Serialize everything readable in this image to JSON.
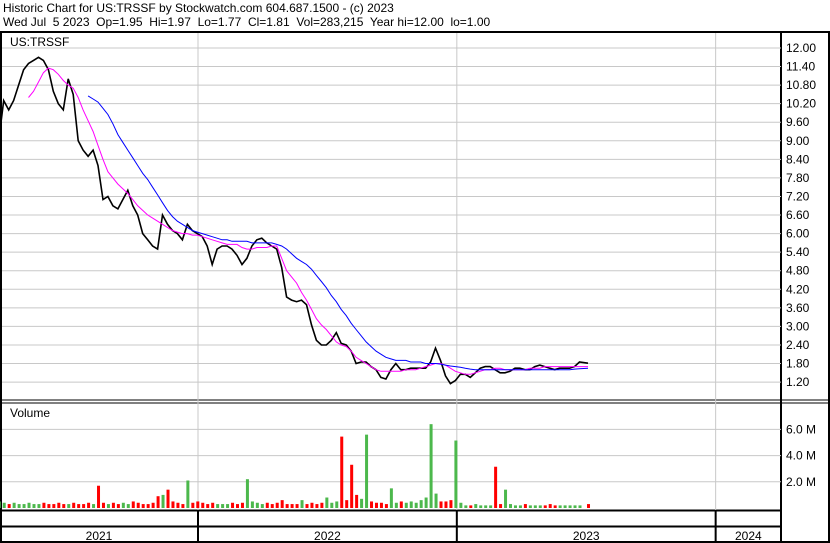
{
  "header": {
    "title": "Historic Chart for US:TRSSF by Stockwatch.com 604.687.1500 - (c) 2023",
    "quote": "Wed Jul  5 2023  Op=1.95  Hi=1.97  Lo=1.77  Cl=1.81  Vol=283,215  Year hi=12.00  lo=1.00"
  },
  "colors": {
    "price": "#000000",
    "ma_short": "#ff00ff",
    "ma_long": "#0000ff",
    "vol_up": "#4cb84c",
    "vol_down": "#ff0000",
    "grid": "#c8c8c8"
  },
  "chart_data": [
    {
      "type": "line",
      "title": "US:TRSSF",
      "ylim": [
        1.0,
        12.2
      ],
      "yticks": [
        "12.00",
        "11.40",
        "10.80",
        "10.20",
        "9.60",
        "9.00",
        "8.40",
        "7.80",
        "7.20",
        "6.60",
        "6.00",
        "5.40",
        "4.80",
        "4.20",
        "3.60",
        "3.00",
        "2.40",
        "1.80",
        "1.20"
      ],
      "xticks": [
        "2021",
        "2022",
        "2023",
        "2024"
      ],
      "grid": true,
      "x": [
        "2021-03-26",
        "2021-04-02",
        "2021-04-09",
        "2021-04-16",
        "2021-04-23",
        "2021-04-30",
        "2021-05-07",
        "2021-05-14",
        "2021-05-21",
        "2021-05-28",
        "2021-06-04",
        "2021-06-11",
        "2021-06-18",
        "2021-06-25",
        "2021-07-02",
        "2021-07-09",
        "2021-07-16",
        "2021-07-23",
        "2021-07-30",
        "2021-08-06",
        "2021-08-13",
        "2021-08-20",
        "2021-08-27",
        "2021-09-03",
        "2021-09-10",
        "2021-09-17",
        "2021-09-24",
        "2021-10-01",
        "2021-10-08",
        "2021-10-15",
        "2021-10-22",
        "2021-10-29",
        "2021-11-05",
        "2021-11-12",
        "2021-11-19",
        "2021-11-26",
        "2021-12-03",
        "2021-12-10",
        "2021-12-17",
        "2021-12-24",
        "2021-12-31",
        "2022-01-07",
        "2022-01-14",
        "2022-01-21",
        "2022-01-28",
        "2022-02-04",
        "2022-02-11",
        "2022-02-18",
        "2022-02-25",
        "2022-03-04",
        "2022-03-11",
        "2022-03-18",
        "2022-03-25",
        "2022-04-01",
        "2022-04-08",
        "2022-04-15",
        "2022-04-22",
        "2022-04-29",
        "2022-05-06",
        "2022-05-13",
        "2022-05-20",
        "2022-05-27",
        "2022-06-03",
        "2022-06-10",
        "2022-06-17",
        "2022-06-24",
        "2022-07-01",
        "2022-07-08",
        "2022-07-15",
        "2022-07-22",
        "2022-07-29",
        "2022-08-05",
        "2022-08-12",
        "2022-08-19",
        "2022-08-26",
        "2022-09-02",
        "2022-09-09",
        "2022-09-16",
        "2022-09-23",
        "2022-09-30",
        "2022-10-07",
        "2022-10-14",
        "2022-10-21",
        "2022-10-28",
        "2022-11-04",
        "2022-11-11",
        "2022-11-18",
        "2022-11-25",
        "2022-12-02",
        "2022-12-09",
        "2022-12-16",
        "2022-12-23",
        "2022-12-30",
        "2023-01-06",
        "2023-01-13",
        "2023-01-20",
        "2023-01-27",
        "2023-02-03",
        "2023-02-10",
        "2023-02-17",
        "2023-02-24",
        "2023-03-03",
        "2023-03-10",
        "2023-03-17",
        "2023-03-24",
        "2023-03-31",
        "2023-04-07",
        "2023-04-14",
        "2023-04-21",
        "2023-04-28",
        "2023-05-05",
        "2023-05-12",
        "2023-05-19",
        "2023-05-26",
        "2023-06-02",
        "2023-06-09",
        "2023-06-16",
        "2023-06-23",
        "2023-07-05"
      ],
      "series": [
        {
          "key": "price",
          "values": [
            9.0,
            10.3,
            10.0,
            10.3,
            10.8,
            11.3,
            11.5,
            11.6,
            11.7,
            11.6,
            11.3,
            10.6,
            10.2,
            10.0,
            11.0,
            10.5,
            9.0,
            8.7,
            8.5,
            8.7,
            8.2,
            7.1,
            7.2,
            6.9,
            6.8,
            7.1,
            7.4,
            6.9,
            6.6,
            6.0,
            5.8,
            5.6,
            5.5,
            6.6,
            6.3,
            6.1,
            6.0,
            5.8,
            6.3,
            6.1,
            6.0,
            5.9,
            5.6,
            5.0,
            5.5,
            5.6,
            5.6,
            5.5,
            5.3,
            5.0,
            5.2,
            5.6,
            5.8,
            5.85,
            5.7,
            5.6,
            5.5,
            4.9,
            3.95,
            3.85,
            3.8,
            3.85,
            3.7,
            3.05,
            2.55,
            2.4,
            2.4,
            2.55,
            2.8,
            2.45,
            2.4,
            2.2,
            1.8,
            1.85,
            1.85,
            1.7,
            1.6,
            1.35,
            1.3,
            1.6,
            1.8,
            1.6,
            1.6,
            1.65,
            1.65,
            1.65,
            1.65,
            1.85,
            2.3,
            1.9,
            1.4,
            1.15,
            1.25,
            1.45,
            1.45,
            1.35,
            1.5,
            1.65,
            1.7,
            1.7,
            1.6,
            1.5,
            1.5,
            1.55,
            1.65,
            1.65,
            1.6,
            1.6,
            1.7,
            1.75,
            1.7,
            1.65,
            1.6,
            1.65,
            1.65,
            1.65,
            1.7,
            1.85,
            1.81
          ]
        },
        {
          "key": "ma_short",
          "values": [
            null,
            null,
            null,
            null,
            null,
            null,
            10.4,
            10.6,
            10.9,
            11.2,
            11.35,
            11.3,
            11.15,
            10.95,
            10.8,
            10.7,
            10.4,
            10.0,
            9.65,
            9.3,
            8.85,
            8.4,
            8.0,
            7.8,
            7.6,
            7.45,
            7.3,
            7.1,
            6.9,
            6.75,
            6.6,
            6.5,
            6.4,
            6.3,
            6.2,
            6.1,
            6.05,
            6.0,
            6.0,
            5.95,
            5.95,
            5.9,
            5.85,
            5.8,
            5.75,
            5.7,
            5.65,
            5.65,
            5.65,
            5.55,
            5.5,
            5.5,
            5.55,
            5.55,
            5.55,
            5.6,
            5.6,
            5.2,
            4.8,
            4.6,
            4.4,
            4.1,
            3.85,
            3.55,
            3.25,
            3.05,
            2.9,
            2.7,
            2.5,
            2.4,
            2.35,
            2.2,
            2.0,
            1.9,
            1.8,
            1.7,
            1.6,
            1.55,
            1.55,
            1.55,
            1.55,
            1.55,
            1.6,
            1.6,
            1.6,
            1.65,
            1.7,
            1.75,
            1.8,
            1.8,
            1.75,
            1.65,
            1.55,
            1.5,
            1.45,
            1.45,
            1.5,
            1.55,
            1.6,
            1.6,
            1.65,
            1.65,
            1.6,
            1.6,
            1.6,
            1.6,
            1.6,
            1.65,
            1.65,
            1.65,
            1.7,
            1.7,
            1.7,
            1.7,
            1.7,
            1.7,
            1.7,
            1.7,
            1.7
          ]
        },
        {
          "key": "ma_long",
          "values": [
            null,
            null,
            null,
            null,
            null,
            null,
            null,
            null,
            null,
            null,
            null,
            null,
            null,
            null,
            null,
            null,
            null,
            null,
            10.45,
            10.35,
            10.25,
            10.05,
            9.85,
            9.55,
            9.2,
            8.95,
            8.7,
            8.45,
            8.2,
            7.95,
            7.75,
            7.5,
            7.25,
            7.0,
            6.75,
            6.55,
            6.4,
            6.3,
            6.2,
            6.1,
            6.05,
            6.0,
            5.95,
            5.9,
            5.85,
            5.8,
            5.8,
            5.75,
            5.75,
            5.75,
            5.75,
            5.7,
            5.7,
            5.7,
            5.7,
            5.7,
            5.65,
            5.6,
            5.5,
            5.35,
            5.2,
            5.1,
            5.0,
            4.85,
            4.65,
            4.45,
            4.25,
            4.0,
            3.8,
            3.55,
            3.35,
            3.1,
            2.9,
            2.7,
            2.5,
            2.35,
            2.2,
            2.1,
            2.0,
            1.95,
            1.9,
            1.9,
            1.9,
            1.85,
            1.85,
            1.85,
            1.8,
            1.8,
            1.8,
            1.78,
            1.75,
            1.72,
            1.7,
            1.68,
            1.65,
            1.62,
            1.6,
            1.6,
            1.6,
            1.6,
            1.6,
            1.6,
            1.6,
            1.6,
            1.6,
            1.6,
            1.6,
            1.6,
            1.6,
            1.6,
            1.6,
            1.6,
            1.6,
            1.6,
            1.6,
            1.6,
            1.62,
            1.63,
            1.65
          ]
        }
      ]
    },
    {
      "type": "bar",
      "title": "Volume",
      "ylim": [
        0,
        7.0
      ],
      "yunit": "M",
      "yticks": [
        "6.0 M",
        "4.0 M",
        "2.0 M"
      ],
      "values": [
        0.5,
        0.4,
        0.3,
        0.4,
        0.3,
        0.3,
        0.4,
        0.3,
        0.3,
        0.4,
        0.3,
        0.3,
        0.4,
        0.3,
        0.3,
        0.4,
        0.3,
        0.3,
        0.4,
        0.3,
        1.7,
        0.4,
        0.3,
        0.4,
        0.3,
        0.4,
        0.3,
        0.5,
        0.4,
        0.3,
        0.3,
        0.4,
        0.9,
        1.0,
        1.4,
        0.5,
        0.4,
        0.3,
        2.1,
        0.4,
        0.5,
        0.4,
        0.3,
        0.4,
        0.3,
        0.3,
        0.3,
        0.4,
        0.3,
        0.4,
        2.2,
        0.5,
        0.4,
        0.3,
        0.4,
        0.3,
        0.4,
        0.6,
        0.3,
        0.3,
        0.3,
        0.6,
        0.3,
        0.4,
        0.3,
        0.4,
        0.8,
        0.4,
        0.5,
        5.45,
        0.6,
        3.3,
        1.0,
        0.7,
        5.6,
        0.5,
        0.4,
        0.4,
        0.3,
        1.5,
        0.4,
        0.5,
        0.4,
        0.5,
        0.4,
        0.6,
        0.8,
        6.4,
        1.1,
        0.5,
        0.5,
        0.6,
        5.15,
        0.4,
        0.2,
        0.2,
        0.3,
        0.2,
        0.2,
        0.2,
        3.15,
        0.3,
        1.4,
        0.3,
        0.2,
        0.2,
        0.3,
        0.2,
        0.2,
        0.2,
        0.2,
        0.3,
        0.2,
        0.2,
        0.2,
        0.2,
        0.2,
        0.2,
        0.3
      ]
    }
  ]
}
